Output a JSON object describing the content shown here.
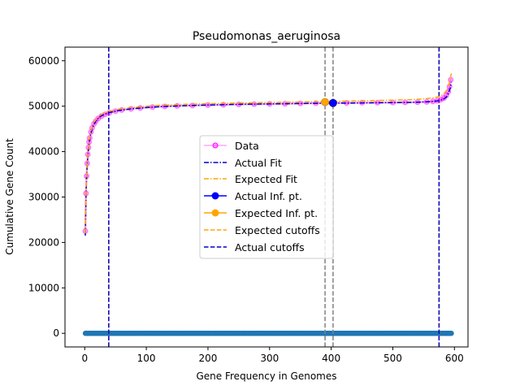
{
  "chart_data": {
    "type": "line",
    "title": "Pseudomonas_aeruginosa",
    "xlabel": "Gene Frequency in Genomes",
    "ylabel": "Cumulative Gene Count",
    "xlim": [
      -32,
      622
    ],
    "ylim": [
      -3000,
      63000
    ],
    "xticks": [
      0,
      100,
      200,
      300,
      400,
      500,
      600
    ],
    "yticks": [
      0,
      10000,
      20000,
      30000,
      40000,
      50000,
      60000
    ],
    "grid": false,
    "legend_position": "center",
    "legend": [
      {
        "label": "Data",
        "key": "data"
      },
      {
        "label": "Actual Fit",
        "key": "actual_fit"
      },
      {
        "label": "Expected Fit",
        "key": "expected_fit"
      },
      {
        "label": "Actual Inf. pt.",
        "key": "actual_inf"
      },
      {
        "label": "Expected Inf. pt.",
        "key": "expected_inf"
      },
      {
        "label": "Expected cutoffs",
        "key": "expected_cutoffs"
      },
      {
        "label": "Actual cutoffs",
        "key": "actual_cutoffs"
      }
    ],
    "series": [
      {
        "key": "data",
        "color": "#ff00ff",
        "x": [
          1,
          2,
          3,
          4,
          5,
          6,
          7,
          8,
          10,
          12,
          15,
          18,
          22,
          27,
          33,
          40,
          50,
          60,
          75,
          90,
          110,
          130,
          150,
          175,
          200,
          225,
          250,
          275,
          300,
          325,
          350,
          375,
          400,
          425,
          450,
          475,
          500,
          520,
          540,
          555,
          565,
          572,
          578,
          583,
          587,
          590,
          592,
          594
        ],
        "y": [
          22500,
          30800,
          34600,
          37400,
          39400,
          40900,
          42100,
          43000,
          44300,
          45200,
          46100,
          46700,
          47300,
          47800,
          48200,
          48550,
          48900,
          49150,
          49400,
          49600,
          49800,
          49950,
          50050,
          50150,
          50250,
          50320,
          50390,
          50450,
          50500,
          50550,
          50600,
          50650,
          50700,
          50730,
          50760,
          50780,
          50800,
          50830,
          50880,
          50950,
          51050,
          51200,
          51450,
          51800,
          52400,
          53200,
          54300,
          55800
        ]
      },
      {
        "key": "actual_fit",
        "color": "#0000cc",
        "x": [
          1,
          2,
          3,
          4,
          5,
          7,
          9,
          12,
          15,
          20,
          25,
          30,
          40,
          55,
          75,
          100,
          130,
          160,
          200,
          250,
          300,
          350,
          400,
          450,
          500,
          530,
          550,
          565,
          575,
          582,
          587,
          590,
          593,
          595
        ],
        "y": [
          21500,
          30000,
          34200,
          37000,
          39000,
          41800,
          43400,
          45000,
          46000,
          47100,
          47700,
          48100,
          48600,
          49050,
          49400,
          49700,
          49950,
          50100,
          50250,
          50400,
          50500,
          50580,
          50660,
          50720,
          50780,
          50840,
          50920,
          51030,
          51200,
          51500,
          52000,
          52700,
          53900,
          55200
        ]
      },
      {
        "key": "expected_fit",
        "color": "#ffa500",
        "x": [
          1,
          2,
          3,
          4,
          5,
          7,
          9,
          12,
          15,
          20,
          25,
          30,
          40,
          55,
          75,
          100,
          130,
          160,
          200,
          250,
          300,
          350,
          400,
          450,
          500,
          530,
          550,
          565,
          575,
          582,
          587,
          590,
          593,
          595
        ],
        "y": [
          22000,
          30500,
          34800,
          37600,
          39600,
          42300,
          43900,
          45400,
          46400,
          47400,
          48000,
          48400,
          48900,
          49350,
          49700,
          50000,
          50250,
          50400,
          50550,
          50700,
          50820,
          50930,
          51050,
          51180,
          51320,
          51450,
          51600,
          51800,
          52100,
          52600,
          53400,
          54300,
          55800,
          57200
        ]
      }
    ],
    "points": [
      {
        "key": "actual_inf",
        "x": 403,
        "y": 50700,
        "color": "#0000ff",
        "edge": "#000080"
      },
      {
        "key": "expected_inf",
        "x": 390,
        "y": 50900,
        "color": "#ffa500",
        "edge": "#cc8400"
      }
    ],
    "vlines": [
      {
        "x": 390,
        "color": "#808080"
      },
      {
        "x": 403,
        "color": "#808080"
      },
      {
        "x": 39,
        "color": "#ffa500"
      },
      {
        "x": 575,
        "color": "#ffa500"
      },
      {
        "x": 39,
        "color": "#0000cc"
      },
      {
        "x": 575,
        "color": "#0000cc"
      }
    ],
    "baseline": {
      "color": "#1f77b4",
      "x_from": 1,
      "x_to": 595,
      "y": 0
    }
  }
}
